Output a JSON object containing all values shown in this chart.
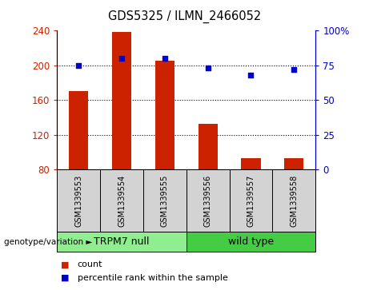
{
  "title": "GDS5325 / ILMN_2466052",
  "samples": [
    "GSM1339553",
    "GSM1339554",
    "GSM1339555",
    "GSM1339556",
    "GSM1339557",
    "GSM1339558"
  ],
  "counts": [
    170,
    238,
    205,
    133,
    93,
    93
  ],
  "percentile_ranks": [
    75,
    80,
    80,
    73,
    68,
    72
  ],
  "groups": [
    {
      "label": "TRPM7 null",
      "indices": [
        0,
        1,
        2
      ],
      "color": "#90EE90"
    },
    {
      "label": "wild type",
      "indices": [
        3,
        4,
        5
      ],
      "color": "#44CC44"
    }
  ],
  "bar_color": "#CC2200",
  "dot_color": "#0000CC",
  "ylim_left": [
    80,
    240
  ],
  "ylim_right": [
    0,
    100
  ],
  "yticks_left": [
    80,
    120,
    160,
    200,
    240
  ],
  "ytick_labels_left": [
    "80",
    "120",
    "160",
    "200",
    "240"
  ],
  "yticks_right": [
    0,
    25,
    50,
    75,
    100
  ],
  "ytick_labels_right": [
    "0",
    "25",
    "50",
    "75",
    "100%"
  ],
  "hlines": [
    120,
    160,
    200
  ],
  "label_count": "count",
  "label_percentile": "percentile rank within the sample",
  "genotype_label": "genotype/variation",
  "group_label_fontsize": 9,
  "sample_label_fontsize": 7,
  "tick_fontsize": 8.5,
  "title_fontsize": 10.5
}
